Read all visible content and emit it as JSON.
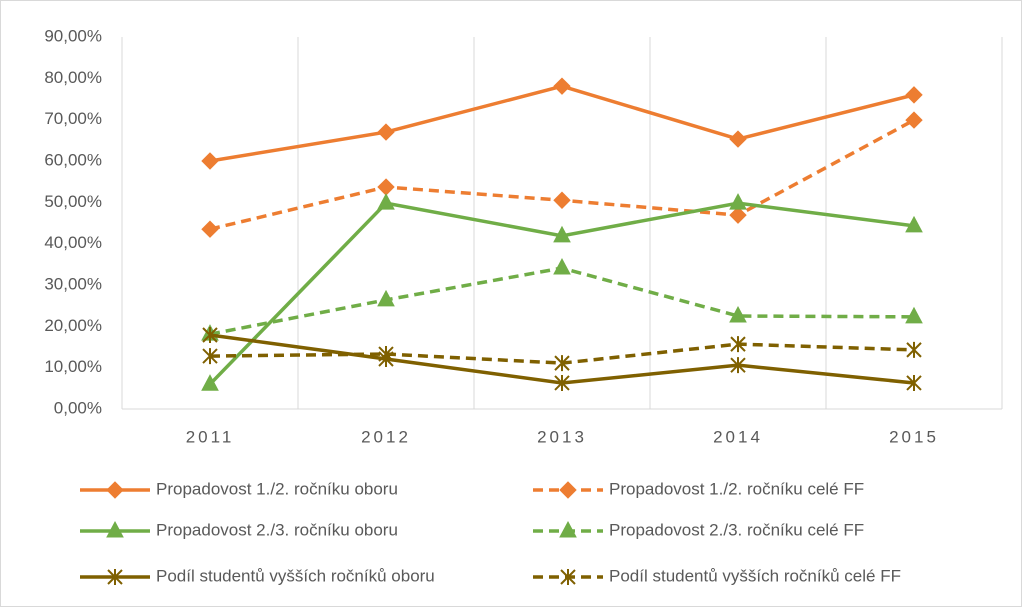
{
  "chart_data": {
    "type": "line",
    "categories": [
      "2011",
      "2012",
      "2013",
      "2014",
      "2015"
    ],
    "series": [
      {
        "name": "Propadovost 1./2. ročníku oboru",
        "color": "#ed7d31",
        "dash": false,
        "marker": "diamond",
        "values": [
          60.0,
          67.0,
          78.1,
          65.3,
          76.0
        ]
      },
      {
        "name": "Propadovost 1./2. ročníku celé FF",
        "color": "#ed7d31",
        "dash": true,
        "marker": "diamond",
        "values": [
          43.5,
          53.7,
          50.5,
          46.9,
          69.9
        ]
      },
      {
        "name": "Propadovost 2./3. ročníku oboru",
        "color": "#70ad47",
        "dash": false,
        "marker": "triangle",
        "values": [
          6.0,
          49.8,
          41.9,
          49.8,
          44.3
        ]
      },
      {
        "name": "Propadovost 2./3. ročníku celé FF",
        "color": "#70ad47",
        "dash": true,
        "marker": "triangle",
        "values": [
          18.1,
          26.4,
          34.1,
          22.5,
          22.3
        ]
      },
      {
        "name": "Podíl studentů vyšších ročníků oboru",
        "color": "#7f6000",
        "dash": false,
        "marker": "star",
        "values": [
          17.9,
          12.1,
          6.3,
          10.6,
          6.3
        ]
      },
      {
        "name": "Podíl studentů vyšších ročníků celé FF",
        "color": "#7f6000",
        "dash": true,
        "marker": "star",
        "values": [
          12.8,
          13.3,
          11.1,
          15.7,
          14.3
        ]
      }
    ],
    "ylim": [
      0,
      90
    ],
    "yticks": [
      {
        "value": 0,
        "label": "0,00%"
      },
      {
        "value": 10,
        "label": "10,00%"
      },
      {
        "value": 20,
        "label": "20,00%"
      },
      {
        "value": 30,
        "label": "30,00%"
      },
      {
        "value": 40,
        "label": "40,00%"
      },
      {
        "value": 50,
        "label": "50,00%"
      },
      {
        "value": 60,
        "label": "60,00%"
      },
      {
        "value": 70,
        "label": "70,00%"
      },
      {
        "value": 80,
        "label": "80,00%"
      },
      {
        "value": 90,
        "label": "90,00%"
      }
    ],
    "grid": "vertical",
    "legend": "bottom"
  }
}
